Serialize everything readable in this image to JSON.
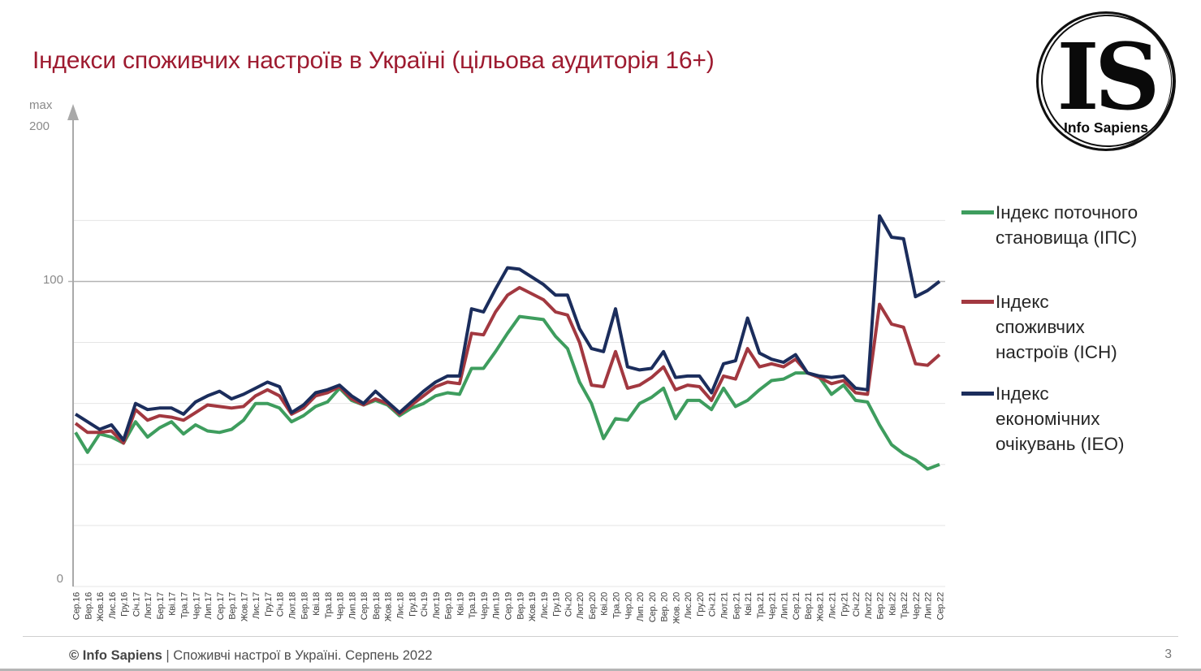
{
  "title": "Індекси споживчих настроїв в Україні (цільова аудиторія 16+)",
  "logo": {
    "initials": "IS",
    "name": "Info Sapiens"
  },
  "y_axis": {
    "max_word": "max",
    "max_value": "200",
    "tick_100": "100",
    "tick_0": "0"
  },
  "legend": [
    {
      "label": "Індекс поточного становища (ІПС)",
      "color": "#3e9d5e"
    },
    {
      "label": "Індекс споживчих настроїв (ІСН)",
      "color": "#a23840"
    },
    {
      "label": "Індекс економічних очікувань (ІЕО)",
      "color": "#1b2d5c"
    }
  ],
  "footer": {
    "brand": "© Info Sapiens",
    "text": " | Споживчі настрої в Україні. Серпень 2022",
    "page": "3"
  },
  "chart_data": {
    "type": "line",
    "title": "Індекси споживчих настроїв в Україні (цільова аудиторія 16+)",
    "ylim": [
      0,
      200
    ],
    "grid": true,
    "gridline_values": [
      0,
      20,
      40,
      60,
      80,
      100,
      120
    ],
    "emphasized_gridline": 100,
    "labeled_yticks": [
      0,
      100
    ],
    "y_max_annotation": "max 200",
    "legend_position": "right",
    "values_note": "values estimated from pixel positions, index points (0-200 scale)",
    "categories": [
      "Сер.16",
      "Вер.16",
      "Жов.16",
      "Лис.16",
      "Гру.16",
      "Січ.17",
      "Лют.17",
      "Бер.17",
      "Кві.17",
      "Тра.17",
      "Чер.17",
      "Лип.17",
      "Сер.17",
      "Вер.17",
      "Жов.17",
      "Лис.17",
      "Гру.17",
      "Січ.18",
      "Лют.18",
      "Бер.18",
      "Кві.18",
      "Тра.18",
      "Чер.18",
      "Лип.18",
      "Сер.18",
      "Вер.18",
      "Жов.18",
      "Лис.18",
      "Гру.18",
      "Січ.19",
      "Лют.19",
      "Бер.19",
      "Кві.19",
      "Тра.19",
      "Чер.19",
      "Лип.19",
      "Сер.19",
      "Вер.19",
      "Жов.19",
      "Лис.19",
      "Гру.19",
      "Січ.20",
      "Лют.20",
      "Бер.20",
      "Кві.20",
      "Тра.20",
      "Чер.20",
      "Лип. 20",
      "Сер. 20",
      "Вер. 20",
      "Жов. 20",
      "Лис.20",
      "Гру.20",
      "Січ.21",
      "Лют.21",
      "Бер.21",
      "Кві.21",
      "Тра.21",
      "Чер.21",
      "Лип.21",
      "Сер.21",
      "Вер.21",
      "Жов.21",
      "Лис.21",
      "Гру.21",
      "Січ.22",
      "Лют.22",
      "Бер.22",
      "Кві.22",
      "Тра.22",
      "Чер.22",
      "Лип.22",
      "Сер.22"
    ],
    "series": [
      {
        "name": "Індекс поточного становища (ІПС)",
        "color": "#3e9d5e",
        "values": [
          50.5,
          44,
          50,
          49,
          47,
          54,
          49,
          52,
          54,
          50,
          53,
          51,
          50.5,
          51.5,
          54.5,
          60,
          60,
          58.5,
          54,
          56,
          59,
          60.5,
          65,
          61,
          59.5,
          61,
          59.5,
          56,
          58.5,
          60,
          62.5,
          63.5,
          63,
          71.5,
          71.5,
          77,
          83,
          88.5,
          88,
          87.5,
          82,
          78,
          67,
          60,
          48.5,
          55,
          54.5,
          60,
          62,
          65,
          55,
          61,
          61,
          58,
          65,
          59,
          61,
          64.5,
          67.5,
          68,
          70,
          70,
          68.5,
          63,
          66,
          61,
          60.5,
          53,
          46.5,
          43.5,
          41.5,
          38.5,
          40
        ]
      },
      {
        "name": "Індекс споживчих настроїв (ІСН)",
        "color": "#a23840",
        "values": [
          53.5,
          50.5,
          50.5,
          51,
          47,
          58,
          54.5,
          56,
          55.5,
          54.5,
          57,
          59.5,
          59,
          58.5,
          59,
          62.5,
          64.5,
          62.5,
          56.5,
          58.5,
          62.5,
          63.5,
          65.5,
          61.5,
          59.5,
          61.5,
          60,
          56.5,
          59.5,
          62.5,
          65.5,
          67,
          66.5,
          83,
          82.5,
          90,
          95.5,
          98,
          96,
          94,
          90,
          89,
          80,
          66,
          65.5,
          77,
          65,
          66,
          68.5,
          72,
          64.5,
          66,
          65.5,
          61,
          69,
          68,
          78,
          72,
          73,
          72,
          74.5,
          70,
          68.5,
          66.5,
          67.5,
          63.5,
          63,
          92.5,
          86,
          85,
          73,
          72.5,
          76
        ]
      },
      {
        "name": "Індекс економічних очікувань (ІЕО)",
        "color": "#1b2d5c",
        "values": [
          56.5,
          54,
          51.5,
          53,
          48,
          60,
          58,
          58.5,
          58.5,
          56.5,
          60.5,
          62.5,
          64,
          61.5,
          63,
          65,
          67,
          65.5,
          57,
          59.5,
          63.5,
          64.5,
          66,
          62.5,
          60,
          64,
          60.5,
          57,
          60.5,
          64,
          67,
          69,
          69,
          91,
          90,
          97.5,
          104.5,
          104,
          101.5,
          99,
          95.5,
          95.5,
          84.5,
          78,
          77,
          91,
          72,
          71,
          71.5,
          77,
          68.5,
          69,
          69,
          63.5,
          73,
          74,
          88,
          76.5,
          74.5,
          73.5,
          76,
          70,
          69,
          68.5,
          69,
          65,
          64.5,
          121.5,
          114.5,
          114,
          95,
          97,
          100
        ]
      }
    ]
  }
}
